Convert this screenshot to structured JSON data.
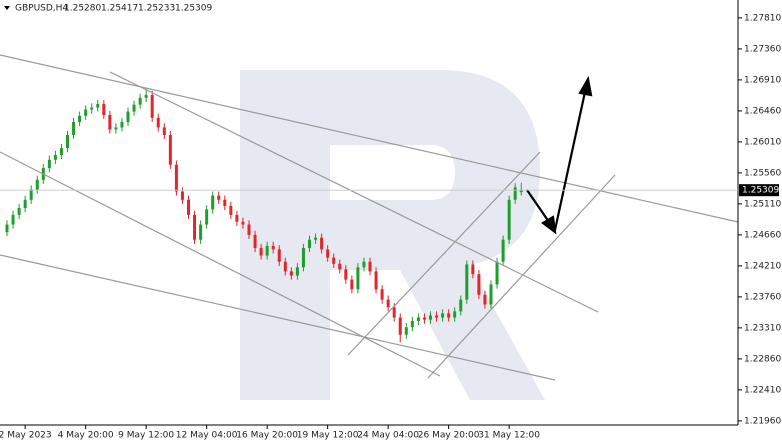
{
  "chart_data": {
    "type": "candlestick",
    "symbol": "GBPUSD,H4",
    "ohlc_labels": [
      "1.25280",
      "1.25417",
      "1.25233",
      "1.25309"
    ],
    "last_price": {
      "value": 1.25309,
      "label": "1.25309"
    },
    "up_color": "#1f9e2c",
    "down_color": "#e3242b",
    "categories": [
      null,
      null,
      null,
      "2 May 2023",
      null,
      null,
      null,
      null,
      null,
      null,
      null,
      null,
      null,
      "4 May 20:00",
      null,
      null,
      null,
      null,
      null,
      null,
      null,
      null,
      null,
      "9 May 12:00",
      null,
      null,
      null,
      null,
      null,
      null,
      null,
      null,
      null,
      "12 May 04:00",
      null,
      null,
      null,
      null,
      null,
      null,
      null,
      null,
      null,
      "16 May 20:00",
      null,
      null,
      null,
      null,
      null,
      null,
      null,
      null,
      null,
      "19 May 12:00",
      null,
      null,
      null,
      null,
      null,
      null,
      null,
      null,
      null,
      "24 May 04:00",
      null,
      null,
      null,
      null,
      null,
      null,
      null,
      null,
      null,
      "26 May 20:00",
      null,
      null,
      null,
      null,
      null,
      null,
      null,
      null,
      null,
      "31 May 12:00",
      null,
      null
    ],
    "open": [
      1.247,
      1.2481,
      1.2495,
      1.2505,
      1.2517,
      1.2532,
      1.2546,
      1.2563,
      1.2575,
      1.2582,
      1.2592,
      1.2611,
      1.263,
      1.2639,
      1.2648,
      1.2651,
      1.2656,
      1.264,
      1.2619,
      1.2622,
      1.263,
      1.2645,
      1.2655,
      1.2665,
      1.2669,
      1.2636,
      1.2622,
      1.2611,
      1.2568,
      1.2529,
      1.2517,
      1.2495,
      1.2459,
      1.2481,
      1.2503,
      1.2523,
      1.2517,
      1.2508,
      1.2495,
      1.2485,
      1.2481,
      1.2466,
      1.2447,
      1.2436,
      1.245,
      1.2445,
      1.2427,
      1.2413,
      1.2407,
      1.2419,
      1.2447,
      1.2459,
      1.2462,
      1.2445,
      1.2433,
      1.2424,
      1.2416,
      1.2401,
      1.2387,
      1.2419,
      1.2427,
      1.2413,
      1.2387,
      1.2372,
      1.2361,
      1.2346,
      1.2321,
      1.2332,
      1.2341,
      1.2346,
      1.2343,
      1.2349,
      1.2346,
      1.2352,
      1.2346,
      1.2355,
      1.2372,
      1.2423,
      1.2409,
      1.2379,
      1.2365,
      1.2394,
      1.2427,
      1.2459,
      1.2517,
      1.2528
    ],
    "high": [
      1.2487,
      1.2501,
      1.2511,
      1.2523,
      1.2538,
      1.2552,
      1.2569,
      1.2581,
      1.2588,
      1.2598,
      1.2617,
      1.2636,
      1.2645,
      1.2654,
      1.2657,
      1.2662,
      1.2662,
      1.2646,
      1.2628,
      1.2636,
      1.2651,
      1.2661,
      1.2671,
      1.268,
      1.2675,
      1.2642,
      1.2628,
      1.2617,
      1.2574,
      1.2535,
      1.2523,
      1.2501,
      1.2487,
      1.2509,
      1.2529,
      1.2529,
      1.2523,
      1.2514,
      1.2501,
      1.2491,
      1.2487,
      1.2472,
      1.2453,
      1.2456,
      1.2456,
      1.2451,
      1.2433,
      1.2419,
      1.2425,
      1.2453,
      1.2465,
      1.2468,
      1.2468,
      1.2451,
      1.2439,
      1.243,
      1.2422,
      1.2407,
      1.2425,
      1.2433,
      1.2433,
      1.2419,
      1.2393,
      1.2378,
      1.2367,
      1.2352,
      1.2338,
      1.2347,
      1.2352,
      1.2352,
      1.2355,
      1.2355,
      1.2358,
      1.2358,
      1.2361,
      1.2378,
      1.2429,
      1.2429,
      1.2415,
      1.2385,
      1.24,
      1.2433,
      1.2465,
      1.2523,
      1.2541,
      1.25417
    ],
    "low": [
      1.2464,
      1.2475,
      1.2489,
      1.2499,
      1.2511,
      1.2526,
      1.254,
      1.2557,
      1.2569,
      1.2576,
      1.2586,
      1.2605,
      1.2624,
      1.2633,
      1.2642,
      1.2645,
      1.2634,
      1.2613,
      1.2613,
      1.2616,
      1.2624,
      1.2639,
      1.2649,
      1.2659,
      1.263,
      1.2616,
      1.2605,
      1.2562,
      1.2523,
      1.2511,
      1.2489,
      1.2453,
      1.2453,
      1.2475,
      1.2497,
      1.2511,
      1.2502,
      1.2489,
      1.2479,
      1.2475,
      1.246,
      1.2441,
      1.243,
      1.243,
      1.2439,
      1.2421,
      1.2407,
      1.2401,
      1.2401,
      1.2413,
      1.2441,
      1.2453,
      1.2439,
      1.2427,
      1.2418,
      1.241,
      1.2395,
      1.2381,
      1.2381,
      1.2413,
      1.2407,
      1.2381,
      1.2366,
      1.2355,
      1.234,
      1.231,
      1.2315,
      1.2326,
      1.2335,
      1.2337,
      1.2337,
      1.234,
      1.234,
      1.234,
      1.234,
      1.2349,
      1.2366,
      1.2403,
      1.2373,
      1.2359,
      1.2359,
      1.2388,
      1.2421,
      1.2453,
      1.2511,
      1.25233
    ],
    "close": [
      1.2481,
      1.2495,
      1.2505,
      1.2517,
      1.2532,
      1.2546,
      1.2563,
      1.2575,
      1.2582,
      1.2592,
      1.2611,
      1.263,
      1.2639,
      1.2648,
      1.2651,
      1.2656,
      1.264,
      1.2619,
      1.2622,
      1.263,
      1.2645,
      1.2655,
      1.2665,
      1.2669,
      1.2636,
      1.2622,
      1.2611,
      1.2568,
      1.2529,
      1.2517,
      1.2495,
      1.2459,
      1.2481,
      1.2503,
      1.2523,
      1.2517,
      1.2508,
      1.2495,
      1.2485,
      1.2481,
      1.2466,
      1.2447,
      1.2436,
      1.245,
      1.2445,
      1.2427,
      1.2413,
      1.2407,
      1.2419,
      1.2447,
      1.2459,
      1.2462,
      1.2445,
      1.2433,
      1.2424,
      1.2416,
      1.2401,
      1.2387,
      1.2419,
      1.2427,
      1.2413,
      1.2387,
      1.2372,
      1.2361,
      1.2346,
      1.2321,
      1.2332,
      1.2341,
      1.2346,
      1.2343,
      1.2349,
      1.2346,
      1.2352,
      1.2346,
      1.2355,
      1.2372,
      1.2423,
      1.2409,
      1.2379,
      1.2365,
      1.2394,
      1.2427,
      1.2459,
      1.2517,
      1.2535,
      1.25309
    ],
    "ylim": [
      1.219,
      1.2807
    ],
    "yticks": [
      {
        "value": 1.2781,
        "label": "1.27810"
      },
      {
        "value": 1.2736,
        "label": "1.27360"
      },
      {
        "value": 1.2691,
        "label": "1.26910"
      },
      {
        "value": 1.2646,
        "label": "1.26460"
      },
      {
        "value": 1.2601,
        "label": "1.26010"
      },
      {
        "value": 1.2556,
        "label": "1.25560"
      },
      {
        "value": 1.2511,
        "label": "1.25110"
      },
      {
        "value": 1.2466,
        "label": "1.24660"
      },
      {
        "value": 1.2421,
        "label": "1.24210"
      },
      {
        "value": 1.2376,
        "label": "1.23760"
      },
      {
        "value": 1.2331,
        "label": "1.23310"
      },
      {
        "value": 1.2286,
        "label": "1.22860"
      },
      {
        "value": 1.2241,
        "label": "1.22410"
      },
      {
        "value": 1.2196,
        "label": "1.21960"
      }
    ]
  }
}
